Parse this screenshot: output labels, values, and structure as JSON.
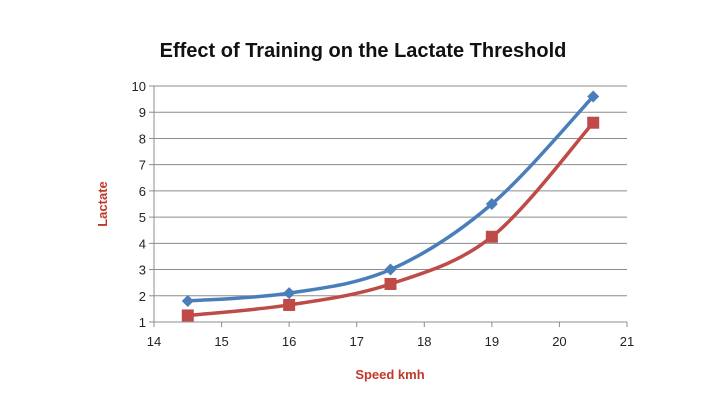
{
  "chart_data": {
    "type": "line",
    "title": "Effect of Training on the Lactate Threshold",
    "xlabel": "Speed kmh",
    "ylabel": "Lactate",
    "xlim": [
      14,
      21
    ],
    "ylim": [
      1,
      10
    ],
    "xticks": [
      14,
      15,
      16,
      17,
      18,
      19,
      20,
      21
    ],
    "yticks": [
      1,
      2,
      3,
      4,
      5,
      6,
      7,
      8,
      9,
      10
    ],
    "grid": "horizontal",
    "smooth": true,
    "label_color": "#c0392b",
    "series": [
      {
        "color": "#4a7ebb",
        "marker": "diamond",
        "x": [
          14.5,
          16,
          17.5,
          19,
          20.5
        ],
        "y": [
          1.8,
          2.1,
          3.0,
          5.5,
          9.6
        ]
      },
      {
        "color": "#be4b48",
        "marker": "square",
        "x": [
          14.5,
          16,
          17.5,
          19,
          20.5
        ],
        "y": [
          1.25,
          1.65,
          2.45,
          4.25,
          8.6
        ]
      }
    ]
  }
}
